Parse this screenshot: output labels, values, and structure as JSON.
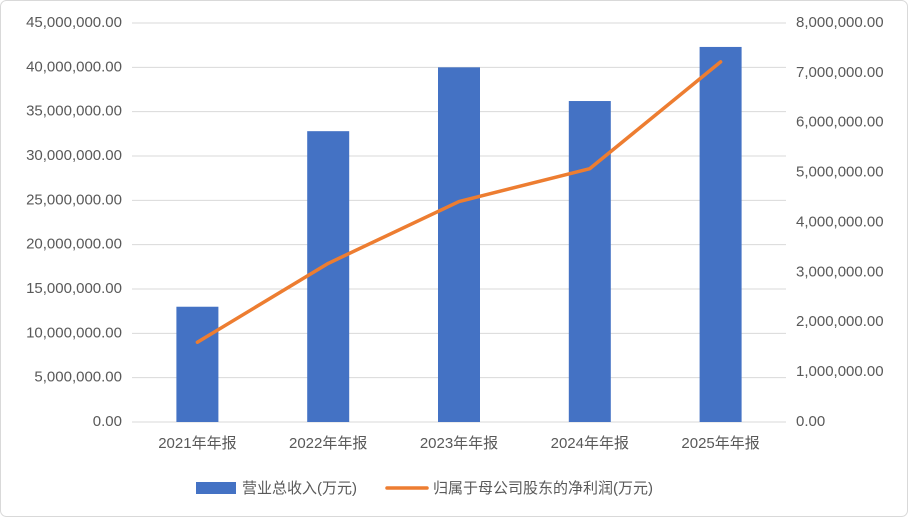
{
  "chart_data": {
    "type": "bar_line",
    "categories": [
      "2021年年报",
      "2022年年报",
      "2023年年报",
      "2024年年报",
      "2025年年报"
    ],
    "series": [
      {
        "name": "营业总收入(万元)",
        "color": "#4472c4",
        "type": "bar",
        "values": [
          13000000,
          32800000,
          40000000,
          36200000,
          42300000
        ]
      },
      {
        "name": "归属于母公司股东的净利润(万元)",
        "color": "#ed7d31",
        "type": "line",
        "axis": "y2",
        "values": [
          1600000,
          3180000,
          4420000,
          5080000,
          7220000
        ]
      }
    ],
    "ylim": [
      0,
      45000000
    ],
    "yticks": [
      {
        "value": 0,
        "label": "0.00"
      },
      {
        "value": 5000000,
        "label": "5,000,000.00"
      },
      {
        "value": 10000000,
        "label": "10,000,000.00"
      },
      {
        "value": 15000000,
        "label": "15,000,000.00"
      },
      {
        "value": 20000000,
        "label": "20,000,000.00"
      },
      {
        "value": 25000000,
        "label": "25,000,000.00"
      },
      {
        "value": 30000000,
        "label": "30,000,000.00"
      },
      {
        "value": 35000000,
        "label": "35,000,000.00"
      },
      {
        "value": 40000000,
        "label": "40,000,000.00"
      },
      {
        "value": 45000000,
        "label": "45,000,000.00"
      }
    ],
    "y2lim": [
      0,
      8000000
    ],
    "y2ticks": [
      {
        "value": 0,
        "label": "0.00"
      },
      {
        "value": 1000000,
        "label": "1,000,000.00"
      },
      {
        "value": 2000000,
        "label": "2,000,000.00"
      },
      {
        "value": 3000000,
        "label": "3,000,000.00"
      },
      {
        "value": 4000000,
        "label": "4,000,000.00"
      },
      {
        "value": 5000000,
        "label": "5,000,000.00"
      },
      {
        "value": 6000000,
        "label": "6,000,000.00"
      },
      {
        "value": 7000000,
        "label": "7,000,000.00"
      },
      {
        "value": 8000000,
        "label": "8,000,000.00"
      }
    ],
    "grid": true,
    "legend": "bottom"
  }
}
